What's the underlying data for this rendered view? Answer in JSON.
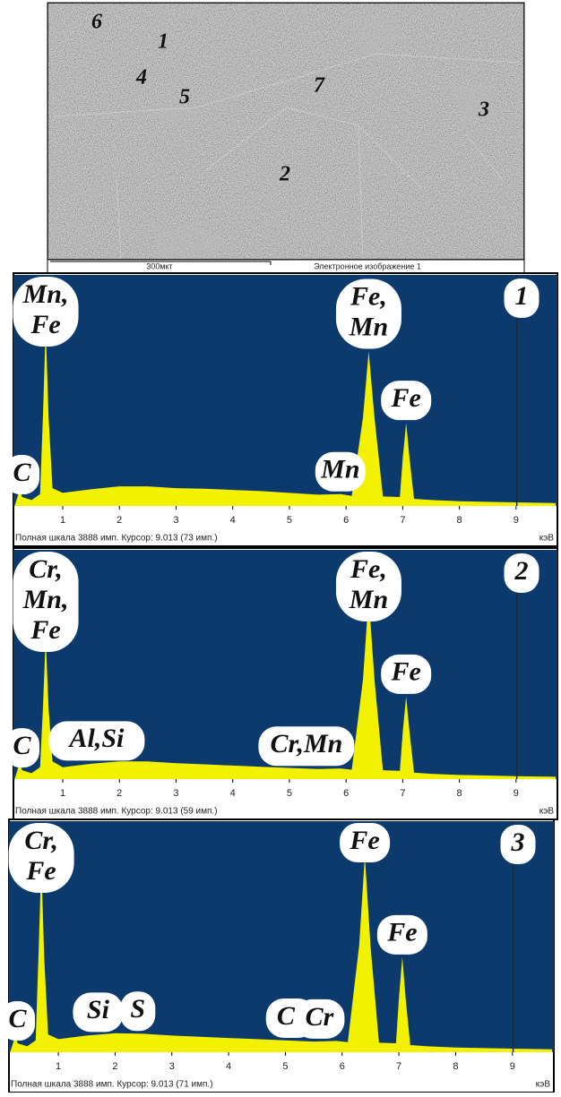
{
  "sem_image": {
    "labels": [
      "6",
      "1",
      "4",
      "5",
      "7",
      "3",
      "2"
    ],
    "scale_bar": "300мкт",
    "caption": "Электронное изображение 1"
  },
  "chart_data": [
    {
      "type": "area",
      "panel_label": "1",
      "color": "#f2f200",
      "background": "#0d3a6c",
      "footer": "Полная шкала 3888 имп. Курсор: 9.013 (73 имп.)",
      "xlabel": "кэВ",
      "cursor": 9.013,
      "xlim": [
        0.13,
        9.73
      ],
      "ylim": [
        0,
        3888
      ],
      "xticks": [
        1,
        2,
        3,
        4,
        5,
        6,
        7,
        8,
        9
      ],
      "x": [
        0.15,
        0.25,
        0.28,
        0.45,
        0.6,
        0.65,
        0.7,
        0.75,
        0.82,
        1.0,
        1.5,
        2.0,
        2.5,
        3.0,
        3.5,
        4.0,
        4.5,
        5.0,
        5.5,
        5.9,
        6.1,
        6.3,
        6.4,
        6.5,
        6.65,
        6.95,
        7.0,
        7.06,
        7.12,
        7.2,
        7.5,
        8.0,
        8.5,
        9.0,
        9.7
      ],
      "values": [
        0,
        300,
        150,
        100,
        200,
        1500,
        3000,
        1500,
        300,
        220,
        280,
        330,
        330,
        300,
        290,
        270,
        250,
        220,
        190,
        200,
        170,
        1500,
        2600,
        1500,
        160,
        150,
        800,
        1400,
        800,
        120,
        100,
        80,
        70,
        60,
        50
      ],
      "annotations": [
        {
          "lines": [
            "C"
          ],
          "x": 0.28
        },
        {
          "lines": [
            "Mn,",
            "Fe"
          ],
          "x": 0.7
        },
        {
          "lines": [
            "Mn"
          ],
          "x": 5.9
        },
        {
          "lines": [
            "Fe,",
            "Mn"
          ],
          "x": 6.4
        },
        {
          "lines": [
            "Fe"
          ],
          "x": 7.06
        }
      ]
    },
    {
      "type": "area",
      "panel_label": "2",
      "color": "#f2f200",
      "background": "#0d3a6c",
      "footer": "Полная шкала 3888 имп. Курсор: 9.013 (59 имп.)",
      "xlabel": "кэВ",
      "cursor": 9.013,
      "xlim": [
        0.13,
        9.73
      ],
      "ylim": [
        0,
        3888
      ],
      "xticks": [
        1,
        2,
        3,
        4,
        5,
        6,
        7,
        8,
        9
      ],
      "x": [
        0.15,
        0.25,
        0.28,
        0.45,
        0.6,
        0.65,
        0.7,
        0.75,
        0.82,
        1.0,
        1.5,
        2.0,
        2.5,
        3.0,
        3.5,
        4.0,
        4.5,
        5.0,
        5.5,
        5.9,
        6.1,
        6.3,
        6.4,
        6.5,
        6.65,
        6.95,
        7.0,
        7.06,
        7.12,
        7.2,
        7.5,
        8.0,
        8.5,
        9.0,
        9.7
      ],
      "values": [
        0,
        300,
        150,
        100,
        200,
        1200,
        2400,
        1200,
        300,
        200,
        260,
        300,
        300,
        270,
        250,
        230,
        210,
        190,
        170,
        180,
        160,
        1700,
        3100,
        1700,
        150,
        140,
        800,
        1400,
        800,
        110,
        90,
        70,
        60,
        50,
        40
      ],
      "annotations": [
        {
          "lines": [
            "C"
          ],
          "x": 0.28
        },
        {
          "lines": [
            "Cr,",
            "Mn,",
            "Fe"
          ],
          "x": 0.7
        },
        {
          "lines": [
            "Al,Si"
          ],
          "x": 1.6
        },
        {
          "lines": [
            "Cr,Mn"
          ],
          "x": 5.3
        },
        {
          "lines": [
            "Fe,",
            "Mn"
          ],
          "x": 6.4
        },
        {
          "lines": [
            "Fe"
          ],
          "x": 7.06
        }
      ]
    },
    {
      "type": "area",
      "panel_label": "3",
      "color": "#f2f200",
      "background": "#0d3a6c",
      "footer": "Полная шкала 3888 имп. Курсор: 9.013 (71 имп.)",
      "xlabel": "кэВ",
      "cursor": 9.013,
      "xlim": [
        0.13,
        9.73
      ],
      "ylim": [
        0,
        3888
      ],
      "xticks": [
        1,
        2,
        3,
        4,
        5,
        6,
        7,
        8,
        9
      ],
      "x": [
        0.15,
        0.25,
        0.28,
        0.45,
        0.6,
        0.65,
        0.7,
        0.75,
        0.82,
        1.0,
        1.5,
        2.0,
        2.5,
        3.0,
        3.5,
        4.0,
        4.5,
        5.0,
        5.5,
        5.9,
        6.1,
        6.3,
        6.4,
        6.5,
        6.65,
        6.95,
        7.0,
        7.06,
        7.12,
        7.2,
        7.5,
        8.0,
        8.5,
        9.0,
        9.7
      ],
      "values": [
        0,
        300,
        150,
        100,
        200,
        1600,
        3200,
        1600,
        300,
        220,
        280,
        320,
        310,
        280,
        260,
        240,
        220,
        200,
        180,
        190,
        170,
        1800,
        3300,
        1800,
        160,
        150,
        900,
        1600,
        900,
        120,
        100,
        80,
        70,
        60,
        50
      ],
      "annotations": [
        {
          "lines": [
            "C"
          ],
          "x": 0.28
        },
        {
          "lines": [
            "Cr,",
            "Fe"
          ],
          "x": 0.7
        },
        {
          "lines": [
            "Si"
          ],
          "x": 1.7
        },
        {
          "lines": [
            "S"
          ],
          "x": 2.4
        },
        {
          "lines": [
            "Cr"
          ],
          "x": 5.1
        },
        {
          "lines": [
            "Cr"
          ],
          "x": 5.6
        },
        {
          "lines": [
            "Fe"
          ],
          "x": 6.4
        },
        {
          "lines": [
            "Fe"
          ],
          "x": 7.06
        }
      ]
    }
  ]
}
